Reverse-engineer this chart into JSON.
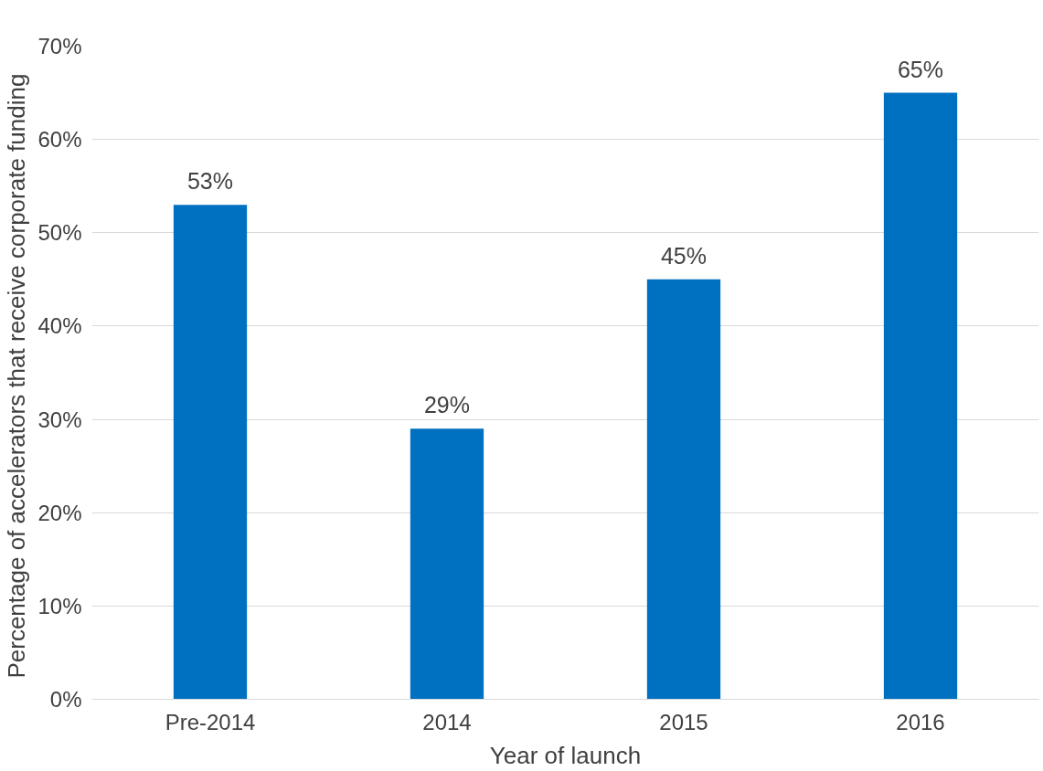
{
  "chart_data": {
    "type": "bar",
    "xlabel": "Year of launch",
    "ylabel": "Percentage of accelerators  that receive corporate funding",
    "categories": [
      "Pre-2014",
      "2014",
      "2015",
      "2016"
    ],
    "values": [
      53,
      29,
      45,
      65
    ],
    "color": "#0070c0",
    "value_labels": [
      "53%",
      "29%",
      "45%",
      "65%"
    ],
    "ylim": [
      0,
      70
    ],
    "yticks": [
      {
        "value": 0,
        "label": "0%"
      },
      {
        "value": 10,
        "label": "10%"
      },
      {
        "value": 20,
        "label": "20%"
      },
      {
        "value": 30,
        "label": "30%"
      },
      {
        "value": 40,
        "label": "40%"
      },
      {
        "value": 50,
        "label": "50%"
      },
      {
        "value": 60,
        "label": "60%"
      },
      {
        "value": 70,
        "label": "70%"
      }
    ],
    "grid": "y"
  }
}
